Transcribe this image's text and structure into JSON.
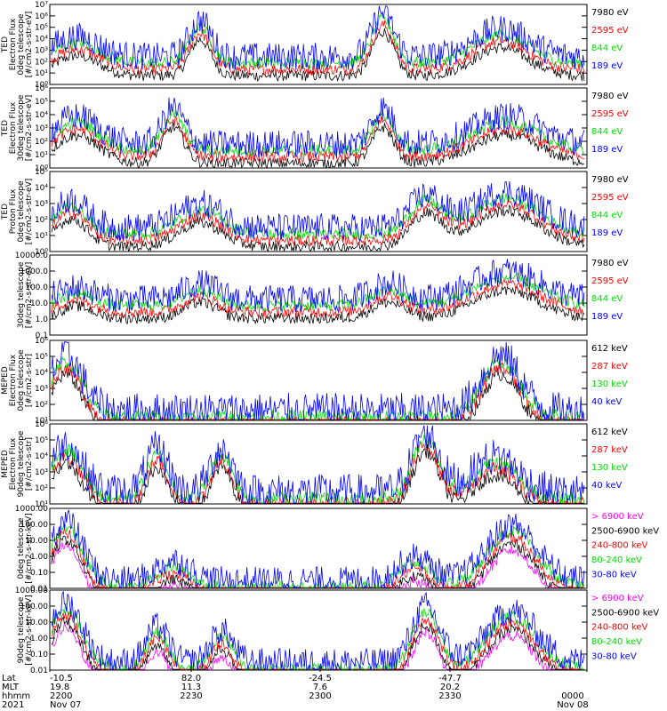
{
  "colors": {
    "blue": "#0000ff",
    "red": "#ff0000",
    "green": "#00dd00",
    "black": "#000000",
    "magenta": "#ff00ff"
  },
  "panels": [
    {
      "ylabel": [
        "TED",
        "Electron Flux",
        "0deg telescope",
        "[#/cm2-s-str-eV]"
      ],
      "yticks": [
        "10⁰",
        "10¹",
        "10²",
        "10³",
        "10⁴",
        "10⁵",
        "10⁶",
        "10⁷"
      ],
      "legend": [
        {
          "label": "7980 eV",
          "color": "#000000"
        },
        {
          "label": "2595 eV",
          "color": "#ff0000"
        },
        {
          "label": "844 eV",
          "color": "#00dd00"
        },
        {
          "label": "189 eV",
          "color": "#0000ff"
        }
      ]
    },
    {
      "ylabel": [
        "TED",
        "Electron Flux",
        "30deg telescope",
        "[#/cm2-s-str-eV]"
      ],
      "yticks": [
        "10⁰",
        "10¹",
        "10²",
        "10³",
        "10⁴",
        "10⁵",
        "10⁶"
      ],
      "legend": [
        {
          "label": "7980 eV",
          "color": "#000000"
        },
        {
          "label": "2595 eV",
          "color": "#ff0000"
        },
        {
          "label": "844 eV",
          "color": "#00dd00"
        },
        {
          "label": "189 eV",
          "color": "#0000ff"
        }
      ]
    },
    {
      "ylabel": [
        "TED",
        "Proton Flux",
        "0deg telescope",
        "[#/cm2-s-str-eV]"
      ],
      "yticks": [
        "10⁰",
        "10¹",
        "10²",
        "10³",
        "10⁴",
        "10⁵"
      ],
      "legend": [
        {
          "label": "7980 eV",
          "color": "#000000"
        },
        {
          "label": "2595 eV",
          "color": "#ff0000"
        },
        {
          "label": "844 eV",
          "color": "#00dd00"
        },
        {
          "label": "189 eV",
          "color": "#0000ff"
        }
      ]
    },
    {
      "ylabel": [
        "30deg telescope",
        "[#/cm2-s-str-eV]"
      ],
      "yticks": [
        "0.1",
        "1.0",
        "10.0",
        "100.0",
        "1000.0",
        "10000.0"
      ],
      "legend": [
        {
          "label": "7980 eV",
          "color": "#000000"
        },
        {
          "label": "2595 eV",
          "color": "#ff0000"
        },
        {
          "label": "844 eV",
          "color": "#00dd00"
        },
        {
          "label": "189 eV",
          "color": "#0000ff"
        }
      ]
    },
    {
      "ylabel": [
        "MEPED",
        "Electron Flux",
        "0deg telescope",
        "[#/cm2-s-str]"
      ],
      "yticks": [
        "10¹",
        "10²",
        "10³",
        "10⁴",
        "10⁵",
        "10⁶"
      ],
      "legend": [
        {
          "label": "612 keV",
          "color": "#000000"
        },
        {
          "label": "287 keV",
          "color": "#ff0000"
        },
        {
          "label": "130 keV",
          "color": "#00dd00"
        },
        {
          "label": "40 keV",
          "color": "#0000ff"
        }
      ]
    },
    {
      "ylabel": [
        "MEPED",
        "Electron Flux",
        "90deg telescope",
        "[#/cm2-s-str]"
      ],
      "yticks": [
        "10¹",
        "10²",
        "10³",
        "10⁴",
        "10⁵",
        "10⁶"
      ],
      "legend": [
        {
          "label": "612 keV",
          "color": "#000000"
        },
        {
          "label": "287 keV",
          "color": "#ff0000"
        },
        {
          "label": "130 keV",
          "color": "#00dd00"
        },
        {
          "label": "40 keV",
          "color": "#0000ff"
        }
      ]
    },
    {
      "ylabel": [
        "0deg telescope",
        "[#/cm2-s-str-keV]"
      ],
      "yticks": [
        "0.01",
        "0.10",
        "1.00",
        "10.00",
        "100.00",
        "1000.00"
      ],
      "legend": [
        {
          "label": "> 6900 keV",
          "color": "#ff00ff"
        },
        {
          "label": "2500-6900 keV",
          "color": "#000000"
        },
        {
          "label": "240-800 keV",
          "color": "#ff0000"
        },
        {
          "label": "80-240 keV",
          "color": "#00dd00"
        },
        {
          "label": "30-80 keV",
          "color": "#0000ff"
        }
      ]
    },
    {
      "ylabel": [
        "90deg telescope",
        "[#/cm2-s-str-keV]"
      ],
      "yticks": [
        "0.01",
        "0.10",
        "1.00",
        "10.00",
        "100.00",
        "1000.00"
      ],
      "legend": [
        {
          "label": "> 6900 keV",
          "color": "#ff00ff"
        },
        {
          "label": "2500-6900 keV",
          "color": "#000000"
        },
        {
          "label": "240-800 keV",
          "color": "#ff0000"
        },
        {
          "label": "80-240 keV",
          "color": "#00dd00"
        },
        {
          "label": "30-80 keV",
          "color": "#0000ff"
        }
      ]
    }
  ],
  "bottom": {
    "row_labels": [
      "Lat",
      "MLT",
      "hhmm",
      "2021"
    ],
    "ticks": [
      {
        "lat": "-10.5",
        "mlt": "19.8",
        "hhmm": "2200",
        "date": "Nov 07"
      },
      {
        "lat": "82.0",
        "mlt": "11.3",
        "hhmm": "2230",
        "date": ""
      },
      {
        "lat": "-24.5",
        "mlt": "7.6",
        "hhmm": "2300",
        "date": ""
      },
      {
        "lat": "-47.7",
        "mlt": "20.2",
        "hhmm": "2330",
        "date": ""
      },
      {
        "lat": "",
        "mlt": "",
        "hhmm": "0000",
        "date": "Nov 08"
      }
    ]
  },
  "chart_data": {
    "type": "line",
    "x_axis": "time (hhmm)",
    "x_ticks": [
      "2200",
      "2230",
      "2300",
      "2330",
      "0000"
    ],
    "scale": "log",
    "grid": false,
    "panel_count": 8,
    "legend_placement": "right"
  }
}
